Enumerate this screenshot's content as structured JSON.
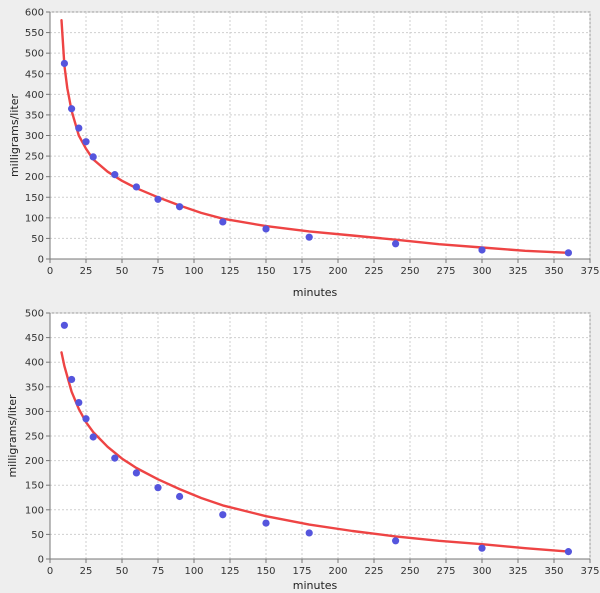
{
  "chart_data": [
    {
      "type": "scatter",
      "xlabel": "minutes",
      "ylabel": "milligrams/liter",
      "xlim": [
        0,
        375
      ],
      "ylim": [
        0,
        600
      ],
      "x_ticks": [
        0,
        25,
        50,
        75,
        100,
        125,
        150,
        175,
        200,
        225,
        250,
        275,
        300,
        325,
        350,
        375
      ],
      "y_ticks": [
        0,
        50,
        100,
        150,
        200,
        250,
        300,
        350,
        400,
        450,
        500,
        550,
        600
      ],
      "grid": true,
      "colors": {
        "points": "#5555dd",
        "fit": "#ee4444"
      },
      "points": {
        "x": [
          10,
          15,
          20,
          25,
          30,
          45,
          60,
          75,
          90,
          120,
          150,
          180,
          240,
          300,
          360
        ],
        "y": [
          475,
          365,
          318,
          285,
          248,
          205,
          175,
          145,
          127,
          90,
          73,
          53,
          37,
          22,
          15
        ]
      },
      "fit_line": {
        "x": [
          8,
          10,
          12,
          15,
          20,
          25,
          30,
          40,
          50,
          60,
          75,
          90,
          105,
          120,
          150,
          180,
          210,
          240,
          270,
          300,
          330,
          360
        ],
        "y": [
          580,
          470,
          415,
          360,
          300,
          268,
          242,
          212,
          190,
          172,
          150,
          130,
          112,
          98,
          80,
          67,
          57,
          47,
          36,
          28,
          20,
          15
        ]
      }
    },
    {
      "type": "scatter",
      "xlabel": "minutes",
      "ylabel": "milligrams/liter",
      "xlim": [
        0,
        375
      ],
      "ylim": [
        0,
        500
      ],
      "x_ticks": [
        0,
        25,
        50,
        75,
        100,
        125,
        150,
        175,
        200,
        225,
        250,
        275,
        300,
        325,
        350,
        375
      ],
      "y_ticks": [
        0,
        50,
        100,
        150,
        200,
        250,
        300,
        350,
        400,
        450,
        500
      ],
      "grid": true,
      "colors": {
        "points": "#5555dd",
        "fit": "#ee4444"
      },
      "points": {
        "x": [
          10,
          15,
          20,
          25,
          30,
          45,
          60,
          75,
          90,
          120,
          150,
          180,
          240,
          300,
          360
        ],
        "y": [
          475,
          365,
          318,
          285,
          248,
          205,
          175,
          145,
          127,
          90,
          73,
          53,
          37,
          22,
          15
        ]
      },
      "fit_line": {
        "x": [
          8,
          10,
          15,
          20,
          25,
          30,
          40,
          50,
          60,
          75,
          90,
          105,
          120,
          150,
          180,
          210,
          240,
          270,
          300,
          330,
          360
        ],
        "y": [
          420,
          392,
          340,
          305,
          278,
          258,
          228,
          204,
          185,
          162,
          142,
          124,
          109,
          87,
          70,
          57,
          46,
          37,
          30,
          22,
          15
        ]
      }
    }
  ]
}
